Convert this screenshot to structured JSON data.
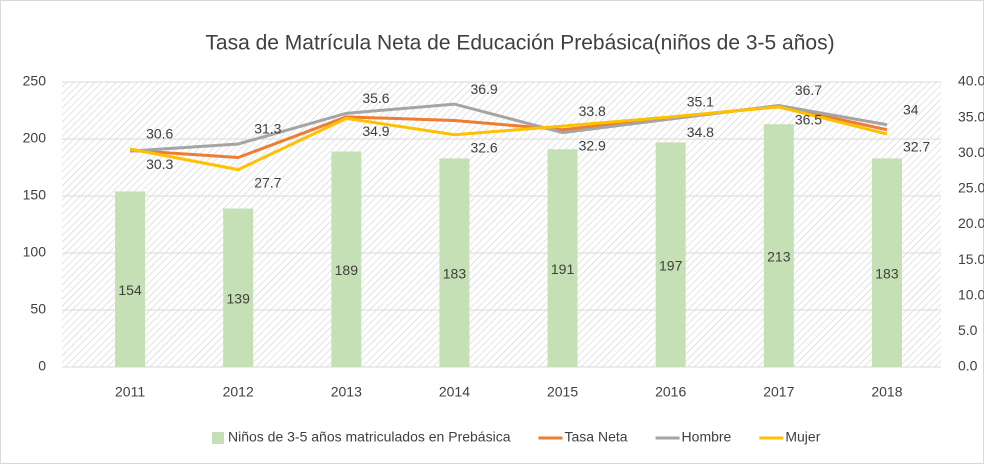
{
  "chart_data": {
    "type": "bar-line",
    "title": "Tasa de Matrícula Neta de Educación Prebásica(niños de 3-5 años)",
    "categories": [
      "2011",
      "2012",
      "2013",
      "2014",
      "2015",
      "2016",
      "2017",
      "2018"
    ],
    "series": [
      {
        "name": "Niños de 3-5 años matriculados en Prebásica",
        "type": "bar",
        "color": "#c5e0b4",
        "values": [
          154,
          139,
          189,
          183,
          191,
          197,
          213,
          183
        ]
      },
      {
        "name": "Tasa Neta",
        "type": "line",
        "axis": "y2",
        "color": "#ed7d31",
        "values": [
          30.4,
          29.4,
          35.1,
          34.6,
          33.3,
          35.0,
          36.6,
          33.3
        ]
      },
      {
        "name": "Hombre",
        "type": "line",
        "axis": "y2",
        "color": "#a5a5a5",
        "values": [
          30.3,
          31.3,
          35.6,
          36.9,
          32.9,
          34.8,
          36.7,
          34
        ]
      },
      {
        "name": "Mujer",
        "type": "line",
        "axis": "y2",
        "color": "#ffc000",
        "values": [
          30.6,
          27.7,
          34.9,
          32.6,
          33.8,
          35.1,
          36.5,
          32.7
        ]
      }
    ],
    "ylim": [
      0,
      250
    ],
    "yticks": [
      0,
      50,
      100,
      150,
      200,
      250
    ],
    "y2lim": [
      0,
      40
    ],
    "y2ticks": [
      {
        "value": 0,
        "label": "0.0"
      },
      {
        "value": 5,
        "label": "5.0"
      },
      {
        "value": 10,
        "label": "10.0"
      },
      {
        "value": 15,
        "label": "15.0"
      },
      {
        "value": 20,
        "label": "20.0"
      },
      {
        "value": 25,
        "label": "25.0"
      },
      {
        "value": 30,
        "label": "30.0"
      },
      {
        "value": 35,
        "label": "35.0"
      },
      {
        "value": 40,
        "label": "40.0"
      }
    ],
    "legend": "bottom"
  }
}
